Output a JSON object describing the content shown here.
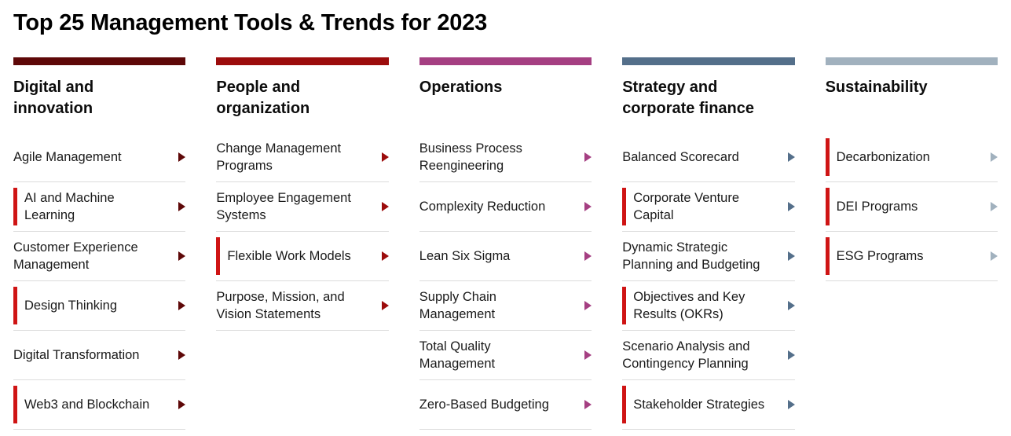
{
  "title": "Top 25 Management Tools & Trends for 2023",
  "colors": {
    "new_indicator": "#cf1414",
    "divider": "#dcdcdc",
    "text": "#1a1a1a",
    "title": "#000000"
  },
  "columns": [
    {
      "header": "Digital and innovation",
      "accent": "#5e0808",
      "items": [
        {
          "label": "Agile Management",
          "new": false
        },
        {
          "label": "AI and Machine Learning",
          "new": true
        },
        {
          "label": "Customer Experience Management",
          "new": false
        },
        {
          "label": "Design Thinking",
          "new": true
        },
        {
          "label": "Digital Transformation",
          "new": false
        },
        {
          "label": "Web3 and Blockchain",
          "new": true
        }
      ]
    },
    {
      "header": "People and organization",
      "accent": "#9c0c0c",
      "items": [
        {
          "label": "Change Management Programs",
          "new": false
        },
        {
          "label": "Employee Engagement Systems",
          "new": false
        },
        {
          "label": "Flexible Work Models",
          "new": true
        },
        {
          "label": "Purpose, Mission, and Vision Statements",
          "new": false
        }
      ]
    },
    {
      "header": "Operations",
      "accent": "#a53f82",
      "items": [
        {
          "label": "Business Process Reengineering",
          "new": false
        },
        {
          "label": "Complexity Reduction",
          "new": false
        },
        {
          "label": "Lean Six Sigma",
          "new": false
        },
        {
          "label": "Supply Chain Management",
          "new": false
        },
        {
          "label": "Total Quality Management",
          "new": false
        },
        {
          "label": "Zero-Based Budgeting",
          "new": false
        }
      ]
    },
    {
      "header": "Strategy and corporate finance",
      "accent": "#546f8a",
      "items": [
        {
          "label": "Balanced Scorecard",
          "new": false
        },
        {
          "label": "Corporate Venture Capital",
          "new": true
        },
        {
          "label": "Dynamic Strategic Planning and Budgeting",
          "new": false
        },
        {
          "label": "Objectives and Key Results (OKRs)",
          "new": true
        },
        {
          "label": "Scenario Analysis and Contingency Planning",
          "new": false
        },
        {
          "label": "Stakeholder Strategies",
          "new": true
        }
      ]
    },
    {
      "header": "Sustainability",
      "accent": "#a1b1be",
      "items": [
        {
          "label": "Decarbonization",
          "new": true
        },
        {
          "label": "DEI Programs",
          "new": true
        },
        {
          "label": "ESG Programs",
          "new": true
        }
      ]
    }
  ]
}
